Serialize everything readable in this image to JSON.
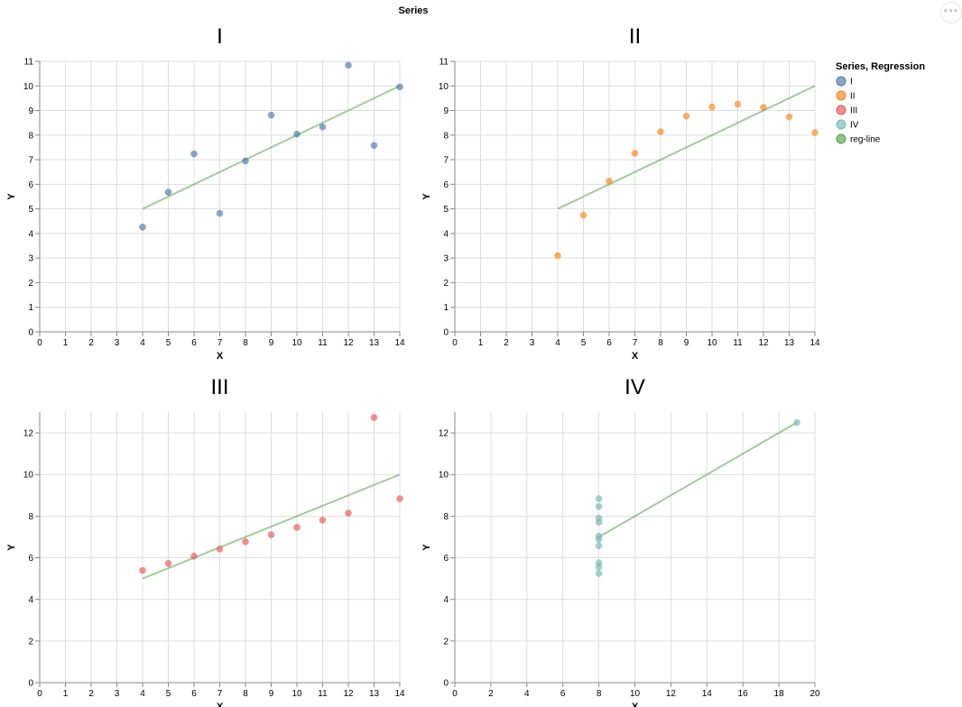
{
  "title": "Series",
  "actions_menu_label": "•••",
  "legend": {
    "title": "Series, Regression",
    "items": [
      {
        "label": "I",
        "color": "#4c78a8"
      },
      {
        "label": "II",
        "color": "#f58518"
      },
      {
        "label": "III",
        "color": "#e45756"
      },
      {
        "label": "IV",
        "color": "#72b7b2"
      },
      {
        "label": "reg-line",
        "color": "#54a24b"
      }
    ]
  },
  "chart_data": [
    {
      "type": "scatter",
      "title": "I",
      "xlabel": "X",
      "ylabel": "Y",
      "xlim": [
        0,
        14
      ],
      "ylim": [
        0,
        11
      ],
      "x_ticks": [
        0,
        1,
        2,
        3,
        4,
        5,
        6,
        7,
        8,
        9,
        10,
        11,
        12,
        13,
        14
      ],
      "y_ticks": [
        0,
        1,
        2,
        3,
        4,
        5,
        6,
        7,
        8,
        9,
        10,
        11
      ],
      "color": "#4c78a8",
      "x": [
        4,
        5,
        6,
        7,
        8,
        9,
        10,
        11,
        12,
        13,
        14
      ],
      "y": [
        4.26,
        5.68,
        7.24,
        4.82,
        6.95,
        8.81,
        8.04,
        8.33,
        10.84,
        7.58,
        9.96
      ],
      "regression": {
        "x": [
          4,
          14
        ],
        "y": [
          5.0,
          10.0
        ],
        "color": "#54a24b"
      }
    },
    {
      "type": "scatter",
      "title": "II",
      "xlabel": "X",
      "ylabel": "Y",
      "xlim": [
        0,
        14
      ],
      "ylim": [
        0,
        11
      ],
      "x_ticks": [
        0,
        1,
        2,
        3,
        4,
        5,
        6,
        7,
        8,
        9,
        10,
        11,
        12,
        13,
        14
      ],
      "y_ticks": [
        0,
        1,
        2,
        3,
        4,
        5,
        6,
        7,
        8,
        9,
        10,
        11
      ],
      "color": "#f58518",
      "x": [
        4,
        5,
        6,
        7,
        8,
        9,
        10,
        11,
        12,
        13,
        14
      ],
      "y": [
        3.1,
        4.74,
        6.13,
        7.26,
        8.14,
        8.77,
        9.14,
        9.26,
        9.13,
        8.74,
        8.1
      ],
      "regression": {
        "x": [
          4,
          14
        ],
        "y": [
          5.0,
          10.0
        ],
        "color": "#54a24b"
      }
    },
    {
      "type": "scatter",
      "title": "III",
      "xlabel": "X",
      "ylabel": "Y",
      "xlim": [
        0,
        14
      ],
      "ylim": [
        0,
        13
      ],
      "x_ticks": [
        0,
        1,
        2,
        3,
        4,
        5,
        6,
        7,
        8,
        9,
        10,
        11,
        12,
        13,
        14
      ],
      "y_ticks": [
        0,
        2,
        4,
        6,
        8,
        10,
        12
      ],
      "color": "#e45756",
      "x": [
        4,
        5,
        6,
        7,
        8,
        9,
        10,
        11,
        12,
        13,
        14
      ],
      "y": [
        5.39,
        5.73,
        6.08,
        6.42,
        6.77,
        7.11,
        7.46,
        7.81,
        8.15,
        12.74,
        8.84
      ],
      "regression": {
        "x": [
          4,
          14
        ],
        "y": [
          5.0,
          10.0
        ],
        "color": "#54a24b"
      }
    },
    {
      "type": "scatter",
      "title": "IV",
      "xlabel": "X",
      "ylabel": "Y",
      "xlim": [
        0,
        20
      ],
      "ylim": [
        0,
        13
      ],
      "x_ticks": [
        0,
        2,
        4,
        6,
        8,
        10,
        12,
        14,
        16,
        18,
        20
      ],
      "y_ticks": [
        0,
        2,
        4,
        6,
        8,
        10,
        12
      ],
      "color": "#72b7b2",
      "x": [
        8,
        8,
        8,
        8,
        8,
        8,
        8,
        8,
        8,
        8,
        19
      ],
      "y": [
        6.58,
        5.76,
        7.71,
        8.84,
        8.47,
        7.04,
        5.25,
        5.56,
        7.91,
        6.89,
        12.5
      ],
      "regression": {
        "x": [
          8,
          19
        ],
        "y": [
          7.0,
          12.5
        ],
        "color": "#54a24b"
      }
    }
  ]
}
